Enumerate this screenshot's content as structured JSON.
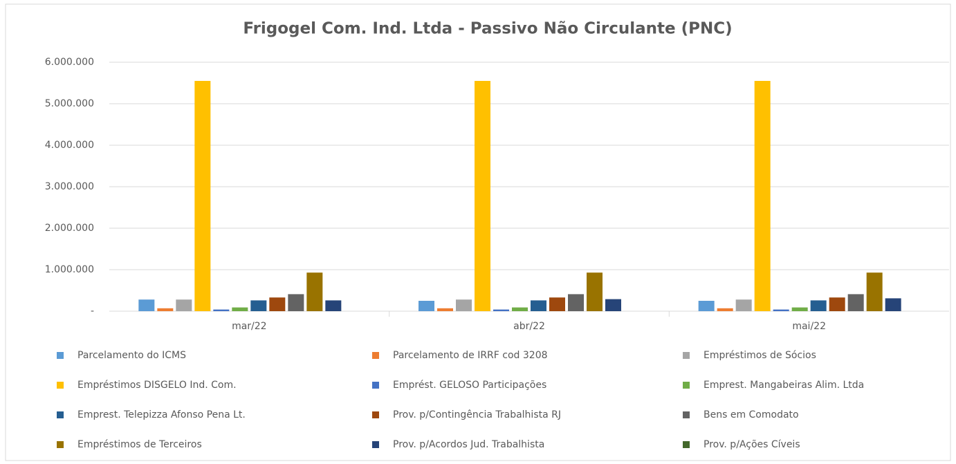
{
  "chart_data": {
    "type": "bar",
    "title": "Frigogel Com. Ind. Ltda - Passivo Não Circulante (PNC)",
    "categories": [
      "mar/22",
      "abr/22",
      "mai/22"
    ],
    "series": [
      {
        "name": "Parcelamento do ICMS",
        "color": "#5b9bd5",
        "values": [
          280000,
          250000,
          250000
        ]
      },
      {
        "name": "Parcelamento de IRRF cod 3208",
        "color": "#ed7d31",
        "values": [
          70000,
          70000,
          70000
        ]
      },
      {
        "name": "Empréstimos de Sócios",
        "color": "#a5a5a5",
        "values": [
          280000,
          280000,
          280000
        ]
      },
      {
        "name": "Empréstimos DISGELO Ind. Com.",
        "color": "#ffc000",
        "values": [
          5550000,
          5550000,
          5550000
        ]
      },
      {
        "name": "Emprést. GELOSO Participações",
        "color": "#4472c4",
        "values": [
          40000,
          40000,
          40000
        ]
      },
      {
        "name": "Emprest. Mangabeiras Alim. Ltda",
        "color": "#70ad47",
        "values": [
          90000,
          90000,
          90000
        ]
      },
      {
        "name": "Emprest. Telepizza Afonso Pena Lt.",
        "color": "#255e91",
        "values": [
          260000,
          260000,
          260000
        ]
      },
      {
        "name": "Prov. p/Contingência Trabalhista RJ",
        "color": "#9e480e",
        "values": [
          330000,
          330000,
          330000
        ]
      },
      {
        "name": "Bens em Comodato",
        "color": "#636363",
        "values": [
          410000,
          410000,
          410000
        ]
      },
      {
        "name": "Empréstimos de Terceiros",
        "color": "#997300",
        "values": [
          930000,
          930000,
          930000
        ]
      },
      {
        "name": "Prov. p/Acordos Jud. Trabalhista",
        "color": "#264478",
        "values": [
          260000,
          290000,
          310000
        ]
      },
      {
        "name": "Prov. p/Ações Cíveis",
        "color": "#43682b",
        "values": [
          0,
          0,
          0
        ]
      }
    ],
    "ylim": [
      0,
      6000000
    ],
    "yticks": [
      {
        "value": 0,
        "label": "-"
      },
      {
        "value": 1000000,
        "label": "1.000.000"
      },
      {
        "value": 2000000,
        "label": "2.000.000"
      },
      {
        "value": 3000000,
        "label": "3.000.000"
      },
      {
        "value": 4000000,
        "label": "4.000.000"
      },
      {
        "value": 5000000,
        "label": "5.000.000"
      },
      {
        "value": 6000000,
        "label": "6.000.000"
      }
    ],
    "grid": true,
    "legend": "bottom"
  }
}
